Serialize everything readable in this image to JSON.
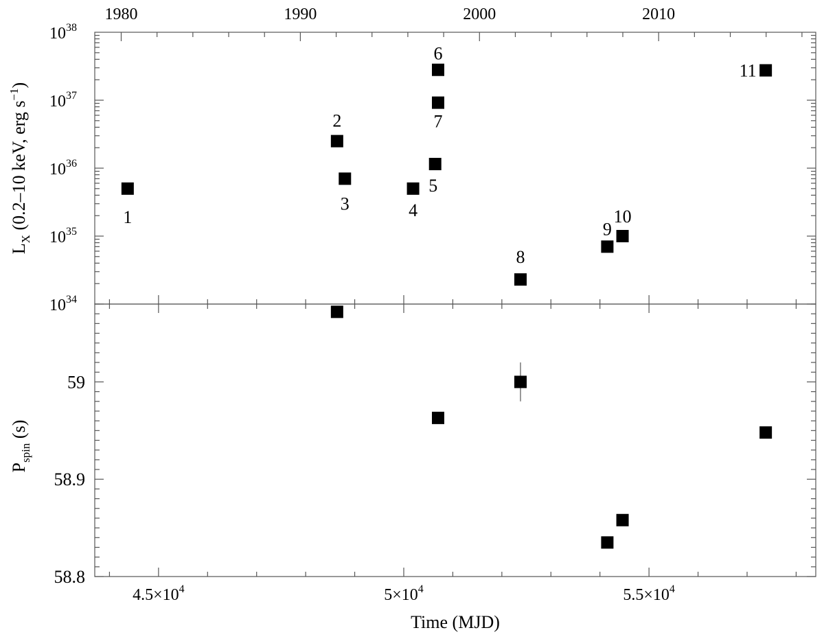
{
  "chart_data": [
    {
      "type": "scatter",
      "panel": "top",
      "ylabel_main": "L",
      "ylabel_sub": "X",
      "ylabel_rest": " (0.2–10 keV, erg s",
      "ylabel_sup": "−1",
      "ylabel_close": ")",
      "yscale": "log",
      "ylim": [
        1e+34,
        1e+38
      ],
      "yticks": [
        {
          "value": 1e+34,
          "base": "10",
          "exp": "34"
        },
        {
          "value": 1e+35,
          "base": "10",
          "exp": "35"
        },
        {
          "value": 1e+36,
          "base": "10",
          "exp": "36"
        },
        {
          "value": 1e+37,
          "base": "10",
          "exp": "37"
        },
        {
          "value": 1e+38,
          "base": "10",
          "exp": "38"
        }
      ],
      "top_axis_ticks": [
        "1980",
        "1990",
        "2000",
        "2010"
      ],
      "points": [
        {
          "label": "1",
          "x": 44370,
          "y": 5e+35
        },
        {
          "label": "2",
          "x": 48640,
          "y": 2.5e+36
        },
        {
          "label": "3",
          "x": 48800,
          "y": 7e+35
        },
        {
          "label": "4",
          "x": 50190,
          "y": 5e+35
        },
        {
          "label": "5",
          "x": 50640,
          "y": 1.15e+36
        },
        {
          "label": "6",
          "x": 50700,
          "y": 2.8e+37
        },
        {
          "label": "7",
          "x": 50700,
          "y": 9.2e+36
        },
        {
          "label": "8",
          "x": 52380,
          "y": 2.3e+34
        },
        {
          "label": "9",
          "x": 54150,
          "y": 7e+34
        },
        {
          "label": "10",
          "x": 54460,
          "y": 1e+35
        },
        {
          "label": "11",
          "x": 57380,
          "y": 2.75e+37
        }
      ]
    },
    {
      "type": "scatter",
      "panel": "bottom",
      "ylabel_main": "P",
      "ylabel_sub": "spin",
      "ylabel_rest": " (s)",
      "ylim": [
        58.8,
        59.08
      ],
      "yticks": [
        "58.8",
        "58.9",
        "59"
      ],
      "xlabel": "Time (MJD)",
      "xlim": [
        43700,
        58400
      ],
      "xticks": [
        {
          "value": 45000,
          "mant": "4.5×10",
          "exp": "4"
        },
        {
          "value": 50000,
          "mant": "5×10",
          "exp": "4"
        },
        {
          "value": 55000,
          "mant": "5.5×10",
          "exp": "4"
        }
      ],
      "points": [
        {
          "x": 48640,
          "y": 59.072
        },
        {
          "x": 50700,
          "y": 58.963
        },
        {
          "x": 52380,
          "y": 59.0,
          "err": 0.02
        },
        {
          "x": 54150,
          "y": 58.835
        },
        {
          "x": 54460,
          "y": 58.858
        },
        {
          "x": 57380,
          "y": 58.948
        }
      ]
    }
  ]
}
